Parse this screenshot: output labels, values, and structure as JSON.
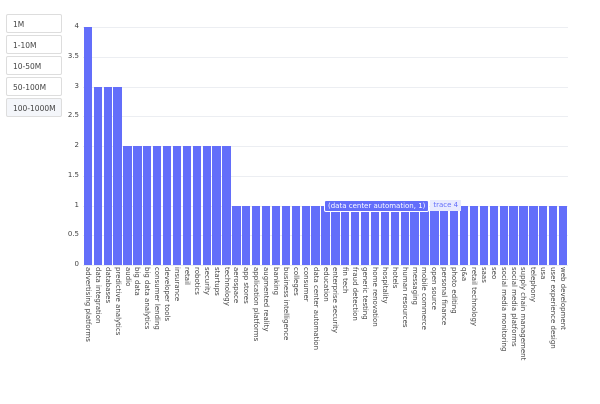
{
  "buttons": [
    {
      "label": "1M"
    },
    {
      "label": "1-10M"
    },
    {
      "label": "10-50M"
    },
    {
      "label": "50-100M"
    },
    {
      "label": "100-1000M",
      "active": true
    }
  ],
  "tooltip": {
    "point": "(data center automation, 1)",
    "trace": "trace 4"
  },
  "colors": {
    "bar": "#636efa"
  },
  "chart_data": {
    "type": "bar",
    "title": "",
    "xlabel": "",
    "ylabel": "",
    "ylim": [
      0,
      4
    ],
    "yticks": [
      "0",
      "0.5",
      "1",
      "1.5",
      "2",
      "2.5",
      "3",
      "3.5",
      "4"
    ],
    "grid": true,
    "categories": [
      "advertising platforms",
      "data integration",
      "databases",
      "predictive analytics",
      "audio",
      "big data",
      "big data analytics",
      "consumer lending",
      "developer tools",
      "insurance",
      "retail",
      "robotics",
      "security",
      "startups",
      "technology",
      "aerospace",
      "app stores",
      "application platforms",
      "augmented reality",
      "banking",
      "business intelligence",
      "colleges",
      "consumer",
      "data center automation",
      "education",
      "enterprise security",
      "fin tech",
      "fraud detection",
      "generic testing",
      "home renovation",
      "hospitality",
      "hotels",
      "human resources",
      "messaging",
      "mobile commerce",
      "open source",
      "personal finance",
      "photo editing",
      "q&a",
      "retail technology",
      "saas",
      "seo",
      "social media monitoring",
      "social media platforms",
      "supply chain management",
      "telephony",
      "usa",
      "user experience design",
      "web development"
    ],
    "values": [
      4,
      3,
      3,
      3,
      2,
      2,
      2,
      2,
      2,
      2,
      2,
      2,
      2,
      2,
      2,
      1,
      1,
      1,
      1,
      1,
      1,
      1,
      1,
      1,
      1,
      1,
      1,
      1,
      1,
      1,
      1,
      1,
      1,
      1,
      1,
      1,
      1,
      1,
      1,
      1,
      1,
      1,
      1,
      1,
      1,
      1,
      1,
      1,
      1
    ]
  }
}
